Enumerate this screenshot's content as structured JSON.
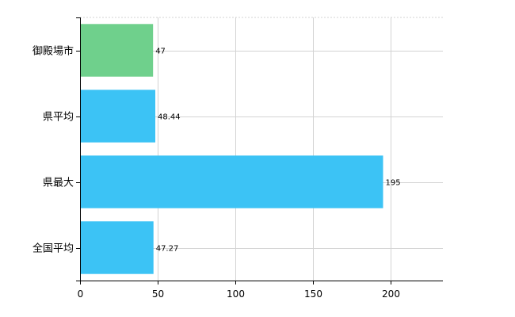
{
  "chart_data": {
    "type": "bar",
    "orientation": "horizontal",
    "categories": [
      "御殿場市",
      "県平均",
      "県最大",
      "全国平均"
    ],
    "values": [
      47,
      48.44,
      195,
      47.27
    ],
    "data_labels": [
      "47",
      "48.44",
      "195",
      "47.27"
    ],
    "colors": [
      "#6fd08c",
      "#3cc3f5",
      "#3cc3f5",
      "#3cc3f5"
    ],
    "xlim": [
      0,
      233.5
    ],
    "xticks": [
      0,
      50,
      100,
      150,
      200
    ],
    "xtick_labels": [
      "0",
      "50",
      "100",
      "150",
      "200"
    ],
    "grid": true,
    "title": "",
    "xlabel": "",
    "ylabel": ""
  }
}
